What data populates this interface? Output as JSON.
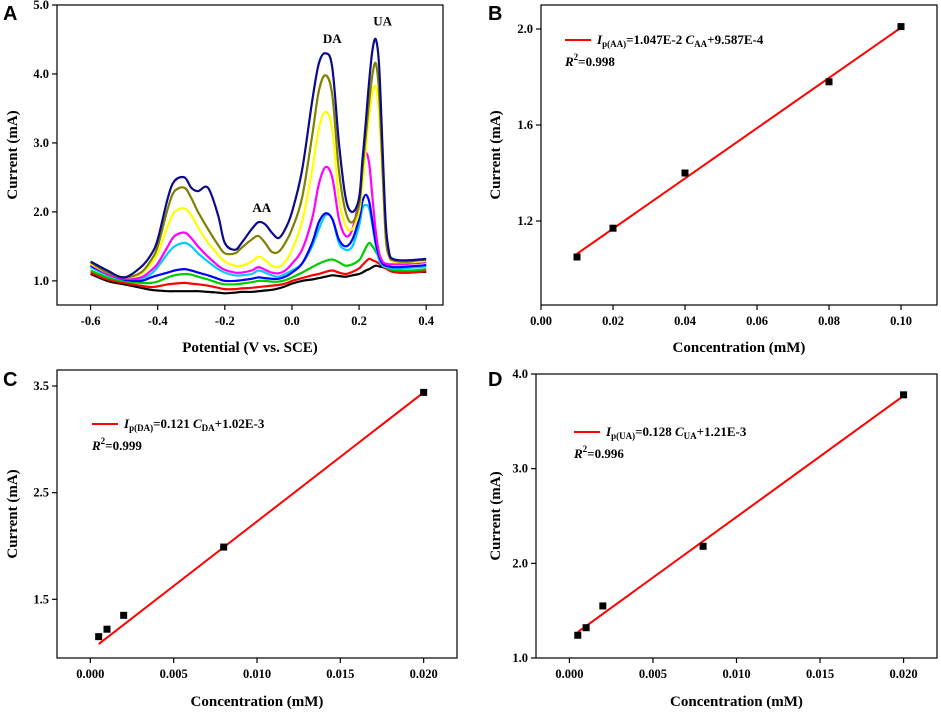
{
  "colors": {
    "fit_line": "#ff0000",
    "marker": "#000000",
    "cv_curves": [
      "#000000",
      "#ff0000",
      "#00cc00",
      "#00ccff",
      "#0000ff",
      "#ff00ff",
      "#ffff00",
      "#808000",
      "#0a0a8a"
    ]
  },
  "chart_data": [
    {
      "panel": "A",
      "type": "line",
      "title": "",
      "xlabel": "Potential (V vs. SCE)",
      "ylabel": "Current (mA)",
      "xlim": [
        -0.7,
        0.45
      ],
      "ylim": [
        0.65,
        5.0
      ],
      "xticks": [
        -0.6,
        -0.4,
        -0.2,
        0.0,
        0.2,
        0.4
      ],
      "xtick_labels": [
        "-0.6",
        "-0.4",
        "-0.2",
        "0.0",
        "0.2",
        "0.4"
      ],
      "yticks": [
        1.0,
        2.0,
        3.0,
        4.0,
        5.0
      ],
      "ytick_labels": [
        "1.0",
        "2.0",
        "3.0",
        "4.0",
        "5.0"
      ],
      "annotations": [
        {
          "text": "AA",
          "x": -0.09,
          "y": 2.0
        },
        {
          "text": "DA",
          "x": 0.12,
          "y": 4.45
        },
        {
          "text": "UA",
          "x": 0.27,
          "y": 4.7
        }
      ],
      "x": [
        -0.6,
        -0.55,
        -0.5,
        -0.45,
        -0.42,
        -0.4,
        -0.37,
        -0.35,
        -0.32,
        -0.3,
        -0.28,
        -0.25,
        -0.22,
        -0.2,
        -0.17,
        -0.15,
        -0.12,
        -0.1,
        -0.08,
        -0.06,
        -0.04,
        -0.02,
        0.0,
        0.03,
        0.06,
        0.08,
        0.1,
        0.12,
        0.14,
        0.16,
        0.18,
        0.2,
        0.21,
        0.22,
        0.23,
        0.24,
        0.25,
        0.26,
        0.27,
        0.28,
        0.29,
        0.3,
        0.32,
        0.35,
        0.38,
        0.4
      ],
      "series": [
        {
          "name": "c1",
          "color": "#000000",
          "values": [
            1.1,
            1.0,
            0.95,
            0.9,
            0.87,
            0.86,
            0.85,
            0.85,
            0.85,
            0.85,
            0.85,
            0.84,
            0.83,
            0.82,
            0.83,
            0.84,
            0.84,
            0.85,
            0.86,
            0.87,
            0.89,
            0.92,
            0.96,
            1.0,
            1.02,
            1.04,
            1.06,
            1.08,
            1.07,
            1.06,
            1.08,
            1.1,
            1.12,
            1.15,
            1.17,
            1.2,
            1.22,
            1.21,
            1.2,
            1.18,
            1.16,
            1.14,
            1.12,
            1.12,
            1.13,
            1.13
          ]
        },
        {
          "name": "c2",
          "color": "#ff0000",
          "values": [
            1.12,
            1.02,
            0.97,
            0.93,
            0.91,
            0.92,
            0.95,
            0.96,
            0.97,
            0.96,
            0.95,
            0.93,
            0.9,
            0.88,
            0.88,
            0.89,
            0.9,
            0.91,
            0.92,
            0.93,
            0.94,
            0.96,
            1.0,
            1.04,
            1.08,
            1.1,
            1.13,
            1.15,
            1.12,
            1.1,
            1.13,
            1.18,
            1.23,
            1.28,
            1.32,
            1.3,
            1.28,
            1.25,
            1.22,
            1.18,
            1.15,
            1.13,
            1.12,
            1.12,
            1.13,
            1.14
          ]
        },
        {
          "name": "c3",
          "color": "#00cc00",
          "values": [
            1.15,
            1.05,
            1.0,
            0.97,
            0.97,
            0.99,
            1.05,
            1.08,
            1.1,
            1.09,
            1.06,
            1.02,
            0.97,
            0.95,
            0.95,
            0.96,
            0.98,
            1.0,
            1.0,
            0.99,
            0.99,
            1.01,
            1.05,
            1.12,
            1.2,
            1.25,
            1.29,
            1.31,
            1.27,
            1.22,
            1.24,
            1.3,
            1.38,
            1.48,
            1.55,
            1.5,
            1.42,
            1.34,
            1.27,
            1.2,
            1.17,
            1.16,
            1.15,
            1.15,
            1.16,
            1.17
          ]
        },
        {
          "name": "c4",
          "color": "#00ccff",
          "values": [
            1.2,
            1.08,
            1.02,
            1.03,
            1.1,
            1.2,
            1.4,
            1.5,
            1.55,
            1.5,
            1.4,
            1.28,
            1.17,
            1.12,
            1.08,
            1.08,
            1.1,
            1.15,
            1.12,
            1.08,
            1.06,
            1.1,
            1.15,
            1.25,
            1.5,
            1.75,
            1.95,
            1.9,
            1.55,
            1.45,
            1.5,
            1.8,
            2.05,
            2.1,
            2.05,
            1.8,
            1.5,
            1.3,
            1.22,
            1.2,
            1.19,
            1.18,
            1.18,
            1.19,
            1.2,
            1.21
          ]
        },
        {
          "name": "c5",
          "color": "#0000ff",
          "values": [
            1.22,
            1.1,
            1.02,
            1.0,
            1.05,
            1.08,
            1.12,
            1.15,
            1.17,
            1.15,
            1.12,
            1.08,
            1.03,
            1.0,
            1.0,
            1.01,
            1.03,
            1.05,
            1.04,
            1.03,
            1.03,
            1.06,
            1.12,
            1.25,
            1.55,
            1.85,
            1.98,
            1.9,
            1.6,
            1.5,
            1.6,
            1.9,
            2.15,
            2.25,
            2.15,
            1.85,
            1.55,
            1.35,
            1.25,
            1.22,
            1.21,
            1.2,
            1.2,
            1.21,
            1.22,
            1.23
          ]
        },
        {
          "name": "c6",
          "color": "#ff00ff",
          "values": [
            1.24,
            1.1,
            1.03,
            1.05,
            1.15,
            1.25,
            1.5,
            1.65,
            1.7,
            1.62,
            1.5,
            1.35,
            1.22,
            1.16,
            1.12,
            1.12,
            1.15,
            1.2,
            1.16,
            1.12,
            1.11,
            1.15,
            1.25,
            1.45,
            1.9,
            2.4,
            2.65,
            2.5,
            1.9,
            1.65,
            1.75,
            2.2,
            2.6,
            2.85,
            2.7,
            2.2,
            1.7,
            1.4,
            1.28,
            1.25,
            1.24,
            1.24,
            1.24,
            1.25,
            1.26,
            1.27
          ]
        },
        {
          "name": "c7",
          "color": "#ffff00",
          "values": [
            1.25,
            1.12,
            1.05,
            1.1,
            1.25,
            1.4,
            1.8,
            2.0,
            2.05,
            1.95,
            1.78,
            1.55,
            1.38,
            1.28,
            1.22,
            1.22,
            1.28,
            1.35,
            1.3,
            1.22,
            1.2,
            1.28,
            1.45,
            1.85,
            2.6,
            3.2,
            3.45,
            3.2,
            2.2,
            1.8,
            1.75,
            2.0,
            2.4,
            2.9,
            3.4,
            3.75,
            3.8,
            3.4,
            2.5,
            1.6,
            1.35,
            1.28,
            1.27,
            1.27,
            1.28,
            1.29
          ]
        },
        {
          "name": "c8",
          "color": "#808000",
          "values": [
            1.27,
            1.12,
            1.05,
            1.12,
            1.3,
            1.5,
            2.05,
            2.3,
            2.35,
            2.2,
            2.0,
            1.75,
            1.52,
            1.4,
            1.4,
            1.48,
            1.6,
            1.65,
            1.55,
            1.42,
            1.42,
            1.55,
            1.75,
            2.2,
            3.1,
            3.75,
            3.98,
            3.7,
            2.6,
            2.0,
            1.85,
            2.1,
            2.6,
            3.1,
            3.6,
            4.0,
            4.15,
            3.7,
            2.6,
            1.6,
            1.35,
            1.3,
            1.28,
            1.28,
            1.3,
            1.3
          ]
        },
        {
          "name": "c9",
          "color": "#0a0a8a",
          "values": [
            1.28,
            1.15,
            1.05,
            1.2,
            1.38,
            1.6,
            2.2,
            2.45,
            2.5,
            2.35,
            2.3,
            2.35,
            1.95,
            1.55,
            1.45,
            1.55,
            1.75,
            1.85,
            1.82,
            1.7,
            1.62,
            1.75,
            2.0,
            2.6,
            3.6,
            4.15,
            4.3,
            4.1,
            3.0,
            2.2,
            2.0,
            2.2,
            2.75,
            3.3,
            3.9,
            4.35,
            4.5,
            4.1,
            2.9,
            1.8,
            1.4,
            1.32,
            1.3,
            1.3,
            1.31,
            1.32
          ]
        }
      ]
    },
    {
      "panel": "B",
      "type": "scatter",
      "title": "",
      "xlabel": "Concentration (mM)",
      "ylabel": "Current (mA)",
      "xlim": [
        0.0,
        0.11
      ],
      "ylim": [
        0.85,
        2.1
      ],
      "xticks": [
        0.0,
        0.02,
        0.04,
        0.06,
        0.08,
        0.1
      ],
      "xtick_labels": [
        "0.00",
        "0.02",
        "0.04",
        "0.06",
        "0.08",
        "0.10"
      ],
      "yticks": [
        1.2,
        1.6,
        2.0
      ],
      "ytick_labels": [
        "1.2",
        "1.6",
        "2.0"
      ],
      "points": {
        "x": [
          0.01,
          0.02,
          0.04,
          0.08,
          0.1
        ],
        "y": [
          1.05,
          1.17,
          1.4,
          1.78,
          2.01
        ]
      },
      "fit": {
        "slope": 10.47,
        "intercept": 0.9587,
        "x_range": [
          0.01,
          0.1
        ]
      },
      "legend": {
        "line1_pre": "I",
        "line1_sub": "p(AA)",
        "line1_mid": "=1.047E-2 ",
        "line1_c": "C",
        "line1_csub": "AA",
        "line1_post": "+9.587E-4",
        "line2_r": "R",
        "line2_sup": "2",
        "line2_val": "=0.998"
      }
    },
    {
      "panel": "C",
      "type": "scatter",
      "title": "",
      "xlabel": "Concentration (mM)",
      "ylabel": "Current (mA)",
      "xlim": [
        -0.002,
        0.022
      ],
      "ylim": [
        0.95,
        3.65
      ],
      "xticks": [
        0.0,
        0.005,
        0.01,
        0.015,
        0.02
      ],
      "xtick_labels": [
        "0.000",
        "0.005",
        "0.010",
        "0.015",
        "0.020"
      ],
      "yticks": [
        1.5,
        2.5,
        3.5
      ],
      "ytick_labels": [
        "1.5",
        "2.5",
        "3.5"
      ],
      "points": {
        "x": [
          0.0005,
          0.001,
          0.002,
          0.008,
          0.02
        ],
        "y": [
          1.15,
          1.22,
          1.35,
          1.99,
          3.44
        ]
      },
      "fit": {
        "slope": 121.0,
        "intercept": 1.02,
        "x_range": [
          0.0005,
          0.02
        ]
      },
      "legend": {
        "line1_pre": "I",
        "line1_sub": "p(DA)",
        "line1_mid": "=0.121 ",
        "line1_c": "C",
        "line1_csub": "DA",
        "line1_post": "+1.02E-3",
        "line2_r": "R",
        "line2_sup": "2",
        "line2_val": "=0.999"
      }
    },
    {
      "panel": "D",
      "type": "scatter",
      "title": "",
      "xlabel": "Concentration (mM)",
      "ylabel": "Current (mA)",
      "xlim": [
        -0.002,
        0.022
      ],
      "ylim": [
        1.0,
        4.0
      ],
      "xticks": [
        0.0,
        0.005,
        0.01,
        0.015,
        0.02
      ],
      "xtick_labels": [
        "0.000",
        "0.005",
        "0.010",
        "0.015",
        "0.020"
      ],
      "yticks": [
        1.0,
        2.0,
        3.0,
        4.0
      ],
      "ytick_labels": [
        "1.0",
        "2.0",
        "3.0",
        "4.0"
      ],
      "points": {
        "x": [
          0.0005,
          0.001,
          0.002,
          0.008,
          0.02
        ],
        "y": [
          1.24,
          1.32,
          1.55,
          2.18,
          3.78
        ]
      },
      "fit": {
        "slope": 128.0,
        "intercept": 1.21,
        "x_range": [
          0.0005,
          0.02
        ]
      },
      "legend": {
        "line1_pre": "I",
        "line1_sub": "p(UA)",
        "line1_mid": "=0.128 ",
        "line1_c": "C",
        "line1_csub": "UA",
        "line1_post": "+1.21E-3",
        "line2_r": "R",
        "line2_sup": "2",
        "line2_val": "=0.996"
      }
    }
  ]
}
